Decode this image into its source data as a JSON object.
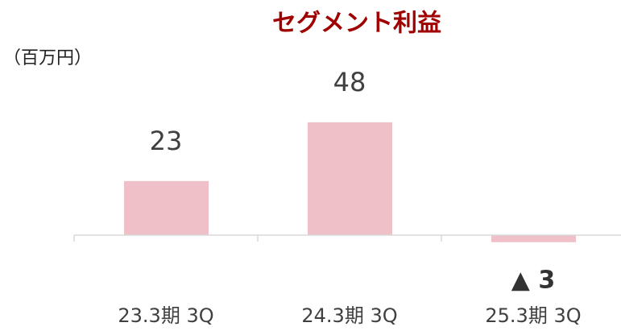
{
  "chart_data": {
    "type": "bar",
    "title": "セグメント利益",
    "unit_label": "（百万円）",
    "categories": [
      "23.3期 3Q",
      "24.3期 3Q",
      "25.3期 3Q"
    ],
    "values": [
      23,
      48,
      -3
    ],
    "value_labels": [
      "23",
      "48",
      "▲ 3"
    ],
    "color": "#f0c0c8"
  }
}
